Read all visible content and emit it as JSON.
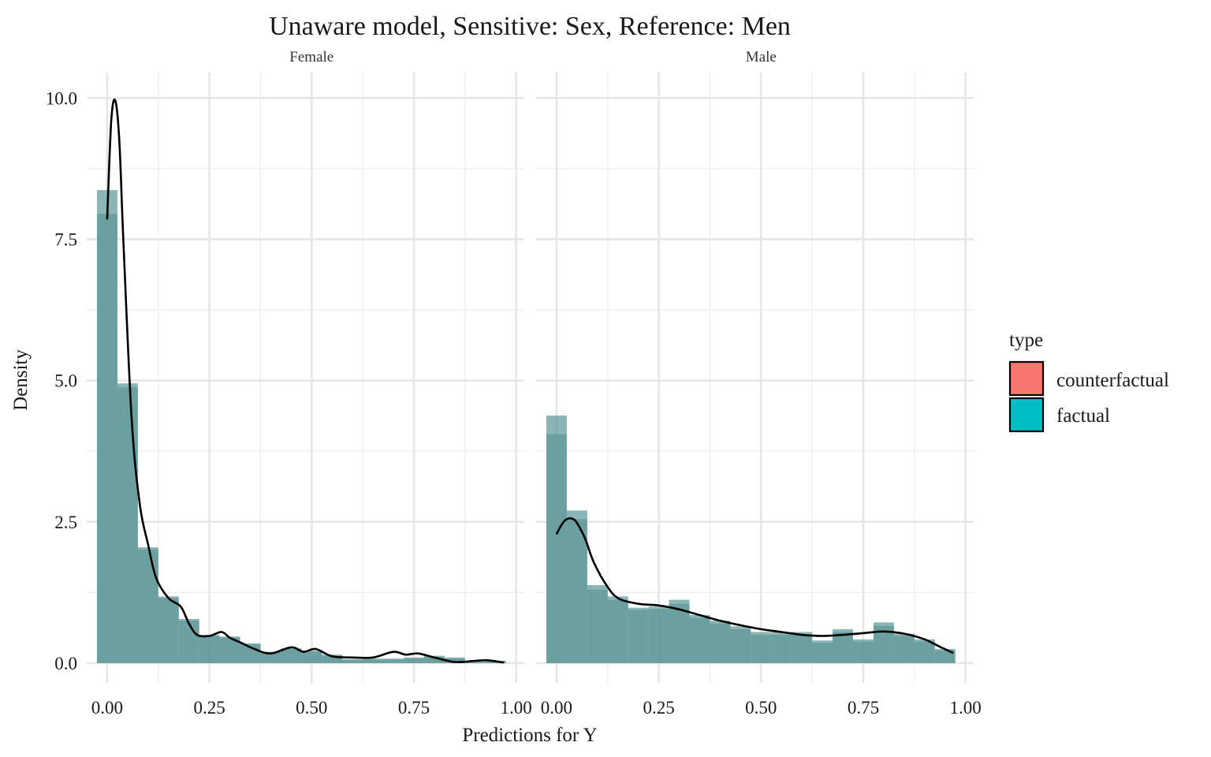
{
  "chart_data": {
    "type": "histogram+density",
    "title": "Unaware model, Sensitive: Sex, Reference: Men",
    "xlabel": "Predictions for Y",
    "ylabel": "Density",
    "xlim": [
      -0.05,
      1.02
    ],
    "ylim": [
      -0.35,
      10.45
    ],
    "x_ticks": [
      0.0,
      0.25,
      0.5,
      0.75,
      1.0
    ],
    "x_tick_labels": [
      "0.00",
      "0.25",
      "0.50",
      "0.75",
      "1.00"
    ],
    "y_ticks": [
      0.0,
      2.5,
      5.0,
      7.5,
      10.0
    ],
    "y_tick_labels": [
      "0.0",
      "2.5",
      "5.0",
      "7.5",
      "10.0"
    ],
    "grid": true,
    "bin_width": 0.05,
    "bin_starts": [
      -0.025,
      0.025,
      0.075,
      0.125,
      0.175,
      0.225,
      0.275,
      0.325,
      0.375,
      0.425,
      0.475,
      0.525,
      0.575,
      0.625,
      0.675,
      0.725,
      0.775,
      0.825,
      0.875,
      0.925
    ],
    "legend": {
      "title": "type",
      "position": "right",
      "entries": [
        {
          "name": "counterfactual",
          "color": "#F8766D"
        },
        {
          "name": "factual",
          "color": "#00BFC4"
        }
      ]
    },
    "colors": {
      "counterfactual": "#F8766D",
      "factual": "#00BFC4",
      "histogram_fill": "#5F9898",
      "density_line": "#000000"
    },
    "facets": [
      {
        "name": "Female",
        "series": [
          {
            "name": "factual",
            "values": [
              8.37,
              4.95,
              2.05,
              1.18,
              0.78,
              0.5,
              0.47,
              0.35,
              0.2,
              0.26,
              0.22,
              0.15,
              0.07,
              0.08,
              0.08,
              0.1,
              0.13,
              0.1,
              0.03,
              0.04
            ]
          },
          {
            "name": "counterfactual",
            "values": [
              7.95,
              4.88,
              2.01,
              1.15,
              0.75,
              0.48,
              0.45,
              0.33,
              0.19,
              0.25,
              0.2,
              0.13,
              0.05,
              0.06,
              0.06,
              0.08,
              0.11,
              0.08,
              0.02,
              0.03
            ]
          }
        ],
        "density": {
          "x": [
            0.0,
            0.01,
            0.02,
            0.03,
            0.04,
            0.06,
            0.08,
            0.1,
            0.12,
            0.15,
            0.18,
            0.2,
            0.22,
            0.25,
            0.28,
            0.3,
            0.33,
            0.36,
            0.4,
            0.45,
            0.48,
            0.51,
            0.55,
            0.6,
            0.65,
            0.7,
            0.73,
            0.76,
            0.8,
            0.85,
            0.9,
            0.93,
            0.97
          ],
          "y": [
            7.85,
            9.6,
            9.95,
            9.2,
            7.4,
            4.3,
            2.8,
            2.1,
            1.5,
            1.15,
            1.0,
            0.7,
            0.5,
            0.48,
            0.55,
            0.45,
            0.35,
            0.25,
            0.17,
            0.28,
            0.2,
            0.25,
            0.12,
            0.1,
            0.1,
            0.2,
            0.15,
            0.17,
            0.1,
            0.02,
            0.04,
            0.05,
            0.01
          ]
        }
      },
      {
        "name": "Male",
        "series": [
          {
            "name": "factual",
            "values": [
              4.38,
              2.7,
              1.38,
              1.18,
              0.98,
              1.0,
              1.12,
              0.85,
              0.75,
              0.65,
              0.55,
              0.55,
              0.55,
              0.4,
              0.6,
              0.42,
              0.72,
              0.52,
              0.42,
              0.25
            ]
          },
          {
            "name": "counterfactual",
            "values": [
              4.05,
              2.55,
              1.3,
              1.12,
              0.94,
              0.96,
              1.05,
              0.8,
              0.7,
              0.6,
              0.5,
              0.5,
              0.5,
              0.36,
              0.55,
              0.38,
              0.66,
              0.48,
              0.38,
              0.22
            ]
          }
        ],
        "density": {
          "x": [
            0.0,
            0.01,
            0.02,
            0.03,
            0.04,
            0.05,
            0.07,
            0.09,
            0.12,
            0.15,
            0.2,
            0.25,
            0.3,
            0.35,
            0.4,
            0.45,
            0.5,
            0.55,
            0.6,
            0.65,
            0.7,
            0.75,
            0.8,
            0.85,
            0.9,
            0.94,
            0.97
          ],
          "y": [
            2.28,
            2.42,
            2.52,
            2.56,
            2.55,
            2.48,
            2.2,
            1.8,
            1.4,
            1.15,
            1.05,
            1.02,
            0.95,
            0.85,
            0.75,
            0.67,
            0.6,
            0.55,
            0.5,
            0.48,
            0.5,
            0.53,
            0.56,
            0.52,
            0.42,
            0.28,
            0.18
          ]
        }
      }
    ]
  }
}
